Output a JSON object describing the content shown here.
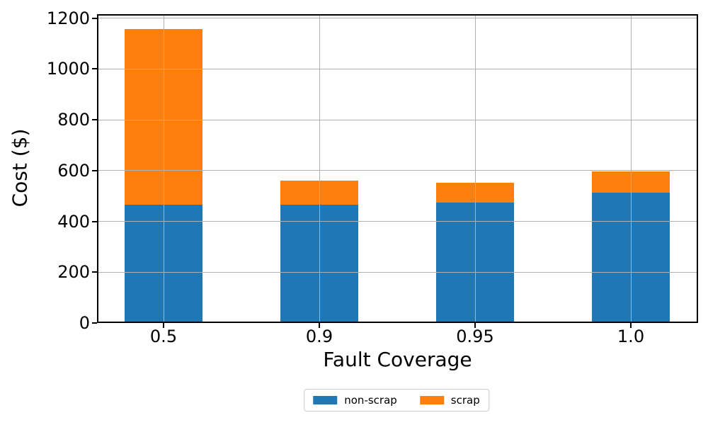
{
  "chart_data": {
    "type": "bar",
    "stacked": true,
    "categories": [
      "0.5",
      "0.9",
      "0.95",
      "1.0"
    ],
    "series": [
      {
        "name": "non-scrap",
        "color": "#1f77b4",
        "values": [
          466,
          466,
          474,
          514
        ]
      },
      {
        "name": "scrap",
        "color": "#ff7f0e",
        "values": [
          692,
          95,
          79,
          82
        ]
      }
    ],
    "totals": [
      1158,
      561,
      553,
      596
    ],
    "title": "",
    "xlabel": "Fault Coverage",
    "ylabel": "Cost ($)",
    "ylim": [
      0,
      1216
    ],
    "yticks": [
      0,
      200,
      400,
      600,
      800,
      1000,
      1200
    ],
    "grid": true,
    "grid_color": "#b0b0b0",
    "axis_color": "#000000",
    "legend_position": "bottom-center",
    "legend_labels": [
      "non-scrap",
      "scrap"
    ]
  }
}
